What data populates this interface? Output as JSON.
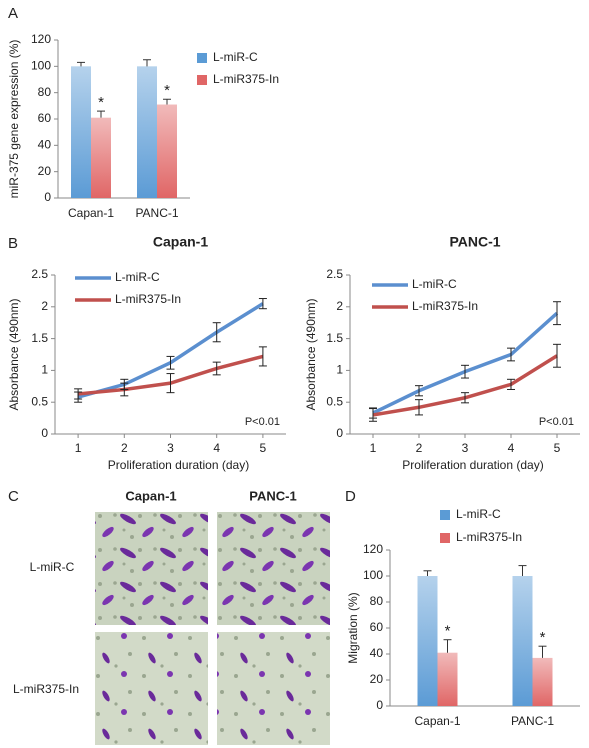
{
  "panel_labels": [
    "A",
    "B",
    "C",
    "D"
  ],
  "micrographs": {
    "columns": [
      "Capan-1",
      "PANC-1"
    ],
    "rows": [
      "L-miR-C",
      "L-miR375-In"
    ]
  },
  "chart_data": [
    {
      "type": "bar",
      "ylabel": "miR-375 gene expression (%)",
      "categories": [
        "Capan-1",
        "PANC-1"
      ],
      "series": [
        {
          "name": "L-miR-C",
          "color": "#5b9bd5",
          "values": [
            100,
            100
          ],
          "errors": [
            3,
            5
          ]
        },
        {
          "name": "L-miR375-In",
          "color": "#e06666",
          "values": [
            61,
            71
          ],
          "errors": [
            5,
            4
          ]
        }
      ],
      "significance": [
        "*",
        "*"
      ],
      "ylim": [
        0,
        120
      ],
      "yticks": [
        0,
        20,
        40,
        60,
        80,
        100,
        120
      ]
    },
    {
      "type": "line",
      "title": "Capan-1",
      "xlabel": "Proliferation duration (day)",
      "ylabel": "Absorbance (490nm)",
      "x": [
        1,
        2,
        3,
        4,
        5
      ],
      "series": [
        {
          "name": "L-miR-C",
          "color": "#5b8fcf",
          "values": [
            0.58,
            0.78,
            1.12,
            1.6,
            2.05
          ],
          "errors": [
            0.08,
            0.08,
            0.1,
            0.15,
            0.08
          ]
        },
        {
          "name": "L-miR375-In",
          "color": "#c0504d",
          "values": [
            0.63,
            0.7,
            0.8,
            1.03,
            1.22
          ],
          "errors": [
            0.08,
            0.1,
            0.15,
            0.1,
            0.15
          ]
        }
      ],
      "annotation": "P<0.01",
      "xlim": [
        0.5,
        5.5
      ],
      "xticks": [
        1,
        2,
        3,
        4,
        5
      ],
      "ylim": [
        0,
        2.5
      ],
      "yticks": [
        0,
        0.5,
        1,
        1.5,
        2,
        2.5
      ]
    },
    {
      "type": "line",
      "title": "PANC-1",
      "xlabel": "Proliferation duration (day)",
      "ylabel": "Absorbance (490nm)",
      "x": [
        1,
        2,
        3,
        4,
        5
      ],
      "series": [
        {
          "name": "L-miR-C",
          "color": "#5b8fcf",
          "values": [
            0.33,
            0.68,
            0.98,
            1.25,
            1.9
          ],
          "errors": [
            0.08,
            0.08,
            0.1,
            0.1,
            0.18
          ]
        },
        {
          "name": "L-miR375-In",
          "color": "#c0504d",
          "values": [
            0.3,
            0.42,
            0.57,
            0.78,
            1.23
          ],
          "errors": [
            0.1,
            0.12,
            0.08,
            0.08,
            0.18
          ]
        }
      ],
      "annotation": "P<0.01",
      "xlim": [
        0.5,
        5.5
      ],
      "xticks": [
        1,
        2,
        3,
        4,
        5
      ],
      "ylim": [
        0,
        2.5
      ],
      "yticks": [
        0,
        0.5,
        1,
        1.5,
        2,
        2.5
      ]
    },
    {
      "type": "bar",
      "ylabel": "Migration (%)",
      "categories": [
        "Capan-1",
        "PANC-1"
      ],
      "series": [
        {
          "name": "L-miR-C",
          "color": "#5b9bd5",
          "values": [
            100,
            100
          ],
          "errors": [
            4,
            8
          ]
        },
        {
          "name": "L-miR375-In",
          "color": "#e06666",
          "values": [
            41,
            37
          ],
          "errors": [
            10,
            9
          ]
        }
      ],
      "significance": [
        "*",
        "*"
      ],
      "ylim": [
        0,
        120
      ],
      "yticks": [
        0,
        20,
        40,
        60,
        80,
        100,
        120
      ]
    }
  ]
}
